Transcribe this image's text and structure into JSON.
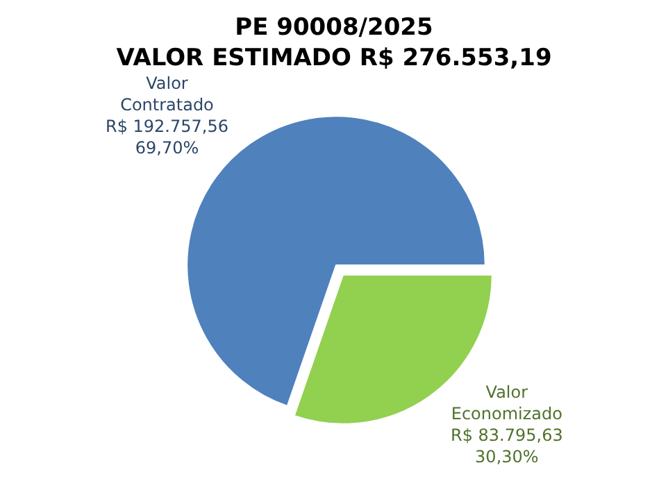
{
  "chart_data": {
    "type": "pie",
    "title": "PE 90008/2025\nVALOR ESTIMADO R$ 276.553,19",
    "categories": [
      "Valor Economizado",
      "Valor Contratado"
    ],
    "values": [
      83795.63,
      192757.56
    ],
    "colors": [
      "#92d050",
      "#4f81bd"
    ],
    "value_labels": [
      "R$ 83.795,63\n30,30%",
      "R$ 192.757,56\n69,70%"
    ],
    "legend": false
  }
}
